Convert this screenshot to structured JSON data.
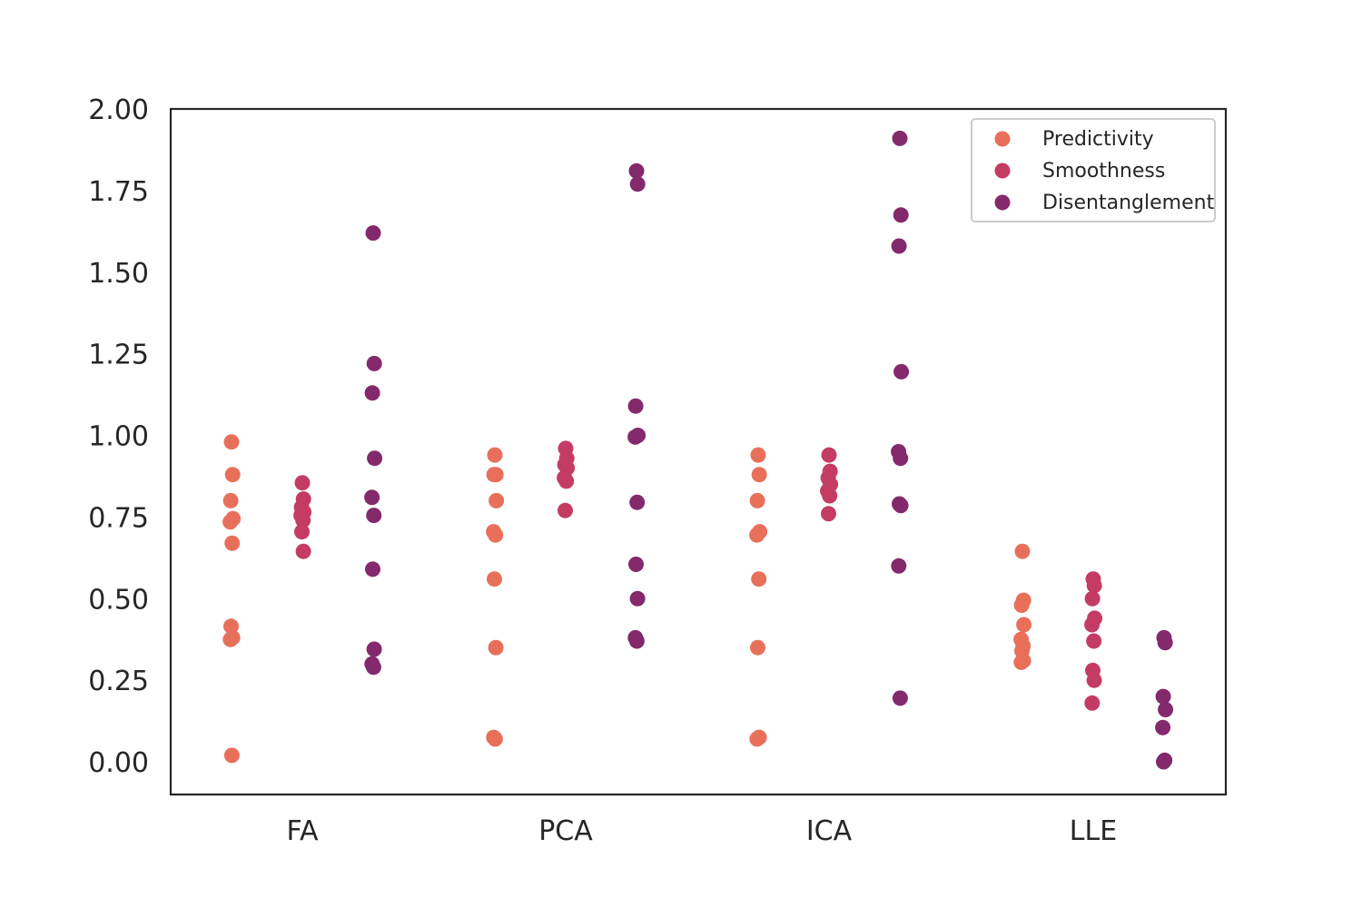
{
  "chart_data": {
    "type": "scatter",
    "categories": [
      "FA",
      "PCA",
      "ICA",
      "LLE"
    ],
    "ylim": [
      -0.1,
      2.0
    ],
    "yticks": [
      "0.00",
      "0.25",
      "0.50",
      "0.75",
      "1.00",
      "1.25",
      "1.50",
      "1.75",
      "2.00"
    ],
    "grid": false,
    "legend_position": "top-right",
    "series": [
      {
        "name": "Predictivity",
        "color": "#e8705a",
        "values": [
          [
            0.98,
            0.88,
            0.8,
            0.745,
            0.735,
            0.67,
            0.415,
            0.38,
            0.375,
            0.02
          ],
          [
            0.94,
            0.88,
            0.88,
            0.8,
            0.705,
            0.695,
            0.56,
            0.35,
            0.075,
            0.07
          ],
          [
            0.94,
            0.88,
            0.8,
            0.705,
            0.695,
            0.56,
            0.35,
            0.075,
            0.07
          ],
          [
            0.645,
            0.495,
            0.48,
            0.42,
            0.375,
            0.355,
            0.34,
            0.31,
            0.305
          ]
        ]
      },
      {
        "name": "Smoothness",
        "color": "#c43c64",
        "values": [
          [
            0.855,
            0.805,
            0.78,
            0.765,
            0.755,
            0.74,
            0.705,
            0.645
          ],
          [
            0.96,
            0.93,
            0.91,
            0.9,
            0.87,
            0.86,
            0.77
          ],
          [
            0.94,
            0.89,
            0.87,
            0.85,
            0.83,
            0.815,
            0.76
          ],
          [
            0.56,
            0.54,
            0.5,
            0.44,
            0.42,
            0.37,
            0.28,
            0.25,
            0.18
          ]
        ]
      },
      {
        "name": "Disentanglement",
        "color": "#84296c",
        "values": [
          [
            1.62,
            1.22,
            1.13,
            0.93,
            0.81,
            0.755,
            0.59,
            0.345,
            0.3,
            0.29
          ],
          [
            1.81,
            1.77,
            1.09,
            1.0,
            0.995,
            0.795,
            0.605,
            0.5,
            0.38,
            0.37
          ],
          [
            1.91,
            1.675,
            1.58,
            1.195,
            0.95,
            0.93,
            0.79,
            0.785,
            0.6,
            0.195
          ],
          [
            0.38,
            0.365,
            0.2,
            0.16,
            0.105,
            0.005,
            0.0
          ]
        ]
      }
    ]
  }
}
